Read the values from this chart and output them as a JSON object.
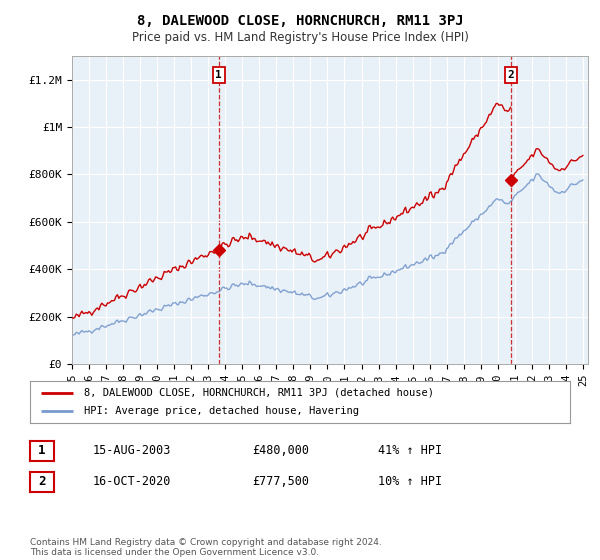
{
  "title": "8, DALEWOOD CLOSE, HORNCHURCH, RM11 3PJ",
  "subtitle": "Price paid vs. HM Land Registry's House Price Index (HPI)",
  "ylim": [
    0,
    1300000
  ],
  "yticks": [
    0,
    200000,
    400000,
    600000,
    800000,
    1000000,
    1200000
  ],
  "ytick_labels": [
    "£0",
    "£200K",
    "£400K",
    "£600K",
    "£800K",
    "£1M",
    "£1.2M"
  ],
  "x_start_year": 1995,
  "x_end_year": 2025,
  "sale1_date": 2003.62,
  "sale1_price": 480000,
  "sale2_date": 2020.79,
  "sale2_price": 777500,
  "red_line_color": "#cc0000",
  "blue_line_color": "#7799cc",
  "background_color": "#ffffff",
  "plot_bg_color": "#e8f0f8",
  "grid_color": "#ffffff",
  "legend_label_red": "8, DALEWOOD CLOSE, HORNCHURCH, RM11 3PJ (detached house)",
  "legend_label_blue": "HPI: Average price, detached house, Havering",
  "annotation1_text": "15-AUG-2003",
  "annotation1_price": "£480,000",
  "annotation1_hpi": "41% ↑ HPI",
  "annotation2_text": "16-OCT-2020",
  "annotation2_price": "£777,500",
  "annotation2_hpi": "10% ↑ HPI",
  "footer": "Contains HM Land Registry data © Crown copyright and database right 2024.\nThis data is licensed under the Open Government Licence v3.0."
}
